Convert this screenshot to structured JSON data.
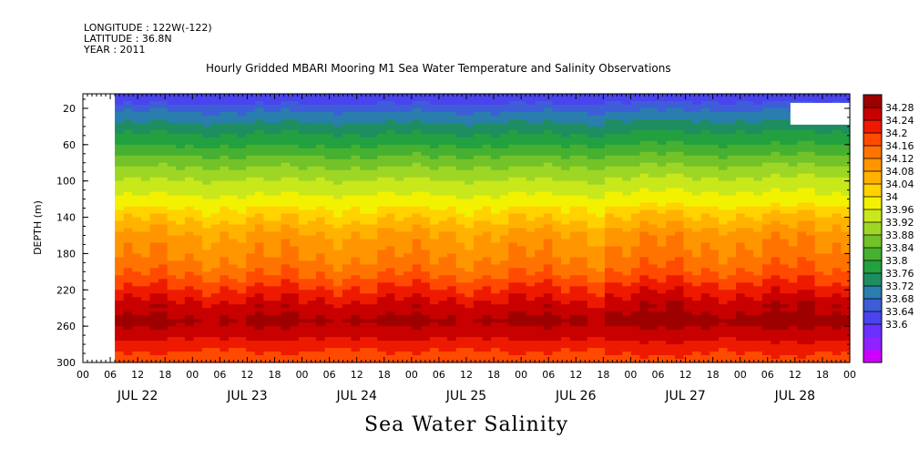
{
  "header": {
    "longitude": "LONGITUDE : 122W(-122)",
    "latitude": "LATITUDE : 36.8N",
    "year": "YEAR : 2011"
  },
  "chart_data": {
    "type": "heatmap",
    "title": "Hourly Gridded MBARI Mooring M1 Sea Water Temperature and Salinity Observations",
    "variable_label": "Sea Water Salinity",
    "ylabel": "DEPTH (m)",
    "ylim": [
      300,
      4
    ],
    "y_ticks": [
      20,
      60,
      100,
      140,
      180,
      220,
      260,
      300
    ],
    "x_hour_ticks": [
      "00",
      "06",
      "12",
      "18",
      "00",
      "06",
      "12",
      "18",
      "00",
      "06",
      "12",
      "18",
      "00",
      "06",
      "12",
      "18",
      "00",
      "06",
      "12",
      "18",
      "00",
      "06",
      "12",
      "18",
      "00",
      "06",
      "12",
      "18",
      "00"
    ],
    "x_day_labels": [
      "JUL 22",
      "JUL 23",
      "JUL 24",
      "JUL 25",
      "JUL 26",
      "JUL 27",
      "JUL 28"
    ],
    "xlim": [
      "2011-07-22T00:00",
      "2011-07-29T00:00"
    ],
    "data_start": "2011-07-22T07:00",
    "colorbar": {
      "ticks": [
        "34.28",
        "34.24",
        "34.2",
        "34.16",
        "34.12",
        "34.08",
        "34.04",
        "34",
        "33.96",
        "33.92",
        "33.88",
        "33.84",
        "33.8",
        "33.76",
        "33.72",
        "33.68",
        "33.64",
        "33.6"
      ],
      "colors": [
        "#cc00ff",
        "#8f22ff",
        "#6a30ff",
        "#4a44ee",
        "#3d5ed8",
        "#2a7eae",
        "#1e8e62",
        "#23a040",
        "#46b030",
        "#72c229",
        "#9ed625",
        "#c8e81c",
        "#f2f200",
        "#ffd200",
        "#ffb300",
        "#ff9600",
        "#ff7400",
        "#ff4a00",
        "#ee1a00",
        "#c80000",
        "#9e0000"
      ]
    },
    "depth_profile": [
      {
        "depth": 10,
        "salinity": 33.7
      },
      {
        "depth": 20,
        "salinity": 33.74
      },
      {
        "depth": 40,
        "salinity": 33.8
      },
      {
        "depth": 60,
        "salinity": 33.85
      },
      {
        "depth": 80,
        "salinity": 33.91
      },
      {
        "depth": 100,
        "salinity": 33.96
      },
      {
        "depth": 120,
        "salinity": 34.0
      },
      {
        "depth": 140,
        "salinity": 34.05
      },
      {
        "depth": 160,
        "salinity": 34.1
      },
      {
        "depth": 180,
        "salinity": 34.12
      },
      {
        "depth": 200,
        "salinity": 34.15
      },
      {
        "depth": 220,
        "salinity": 34.2
      },
      {
        "depth": 240,
        "salinity": 34.25
      },
      {
        "depth": 255,
        "salinity": 34.27
      },
      {
        "depth": 270,
        "salinity": 34.24
      },
      {
        "depth": 285,
        "salinity": 34.2
      },
      {
        "depth": 300,
        "salinity": 34.17
      }
    ],
    "grid": false
  }
}
